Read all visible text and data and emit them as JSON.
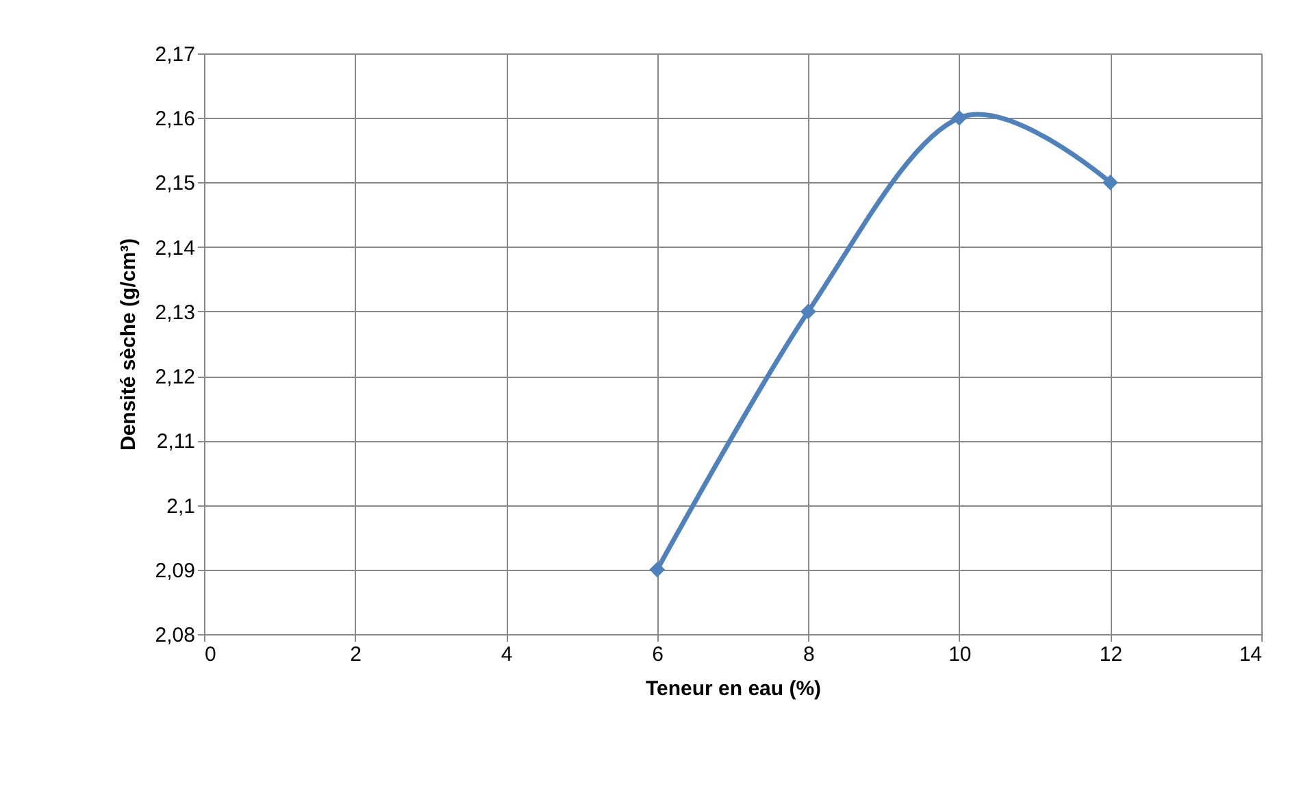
{
  "chart_data": {
    "type": "line",
    "xlabel": "Teneur en eau (%)",
    "ylabel": "Densité sèche (g/cm³)",
    "x": [
      6,
      8,
      10,
      12
    ],
    "series": [
      {
        "color": "#4f81bd",
        "values": [
          2.09,
          2.13,
          2.16,
          2.15
        ]
      }
    ],
    "xlim": [
      0,
      14
    ],
    "xticks": [
      0,
      2,
      4,
      6,
      8,
      10,
      12,
      14
    ],
    "ylim": [
      2.08,
      2.17
    ],
    "yticks": [
      {
        "value": 2.08,
        "label": "2,08"
      },
      {
        "value": 2.09,
        "label": "2,09"
      },
      {
        "value": 2.1,
        "label": "2,1"
      },
      {
        "value": 2.11,
        "label": "2,11"
      },
      {
        "value": 2.12,
        "label": "2,12"
      },
      {
        "value": 2.13,
        "label": "2,13"
      },
      {
        "value": 2.14,
        "label": "2,14"
      },
      {
        "value": 2.15,
        "label": "2,15"
      },
      {
        "value": 2.16,
        "label": "2,16"
      },
      {
        "value": 2.17,
        "label": "2,17"
      }
    ],
    "grid": true,
    "marker": "diamond",
    "line_style": "solid"
  }
}
